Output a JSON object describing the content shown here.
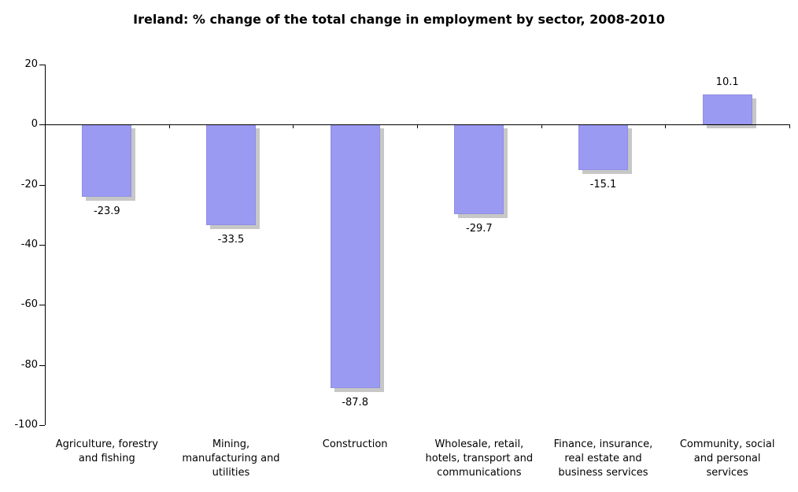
{
  "title": "Ireland: % change of the total change in employment by sector, 2008-2010",
  "chart_data": {
    "type": "bar",
    "title": "Ireland: % change of the total change in employment by sector, 2008-2010",
    "xlabel": "",
    "ylabel": "",
    "categories": [
      "Agriculture, forestry and fishing",
      "Mining, manufacturing and utilities",
      "Construction",
      "Wholesale, retail, hotels, transport and communications",
      "Finance, insurance, real estate and business services",
      "Community, social and personal services"
    ],
    "category_display": [
      "Agriculture, forestry\nand fishing",
      "Mining,\nmanufacturing and\nutilities",
      "Construction",
      "Wholesale, retail,\nhotels, transport and\ncommunications",
      "Finance, insurance,\nreal estate and\nbusiness services",
      "Community, social\nand personal\nservices"
    ],
    "values": [
      -23.9,
      -33.5,
      -87.8,
      -29.7,
      -15.1,
      10.1
    ],
    "value_labels": [
      "-23.9",
      "-33.5",
      "-87.8",
      "-29.7",
      "-15.1",
      "10.1"
    ],
    "ylim": [
      -100,
      20
    ],
    "yticks": [
      20,
      0,
      -20,
      -40,
      -60,
      -80,
      -100
    ],
    "grid": false,
    "legend": false,
    "colors": {
      "bar_fill": "#9a9af3",
      "bar_border": "#8f8fe0",
      "bar_shadow": "#c7c7c7",
      "axis": "#000000",
      "text": "#000000",
      "background": "#ffffff"
    }
  }
}
